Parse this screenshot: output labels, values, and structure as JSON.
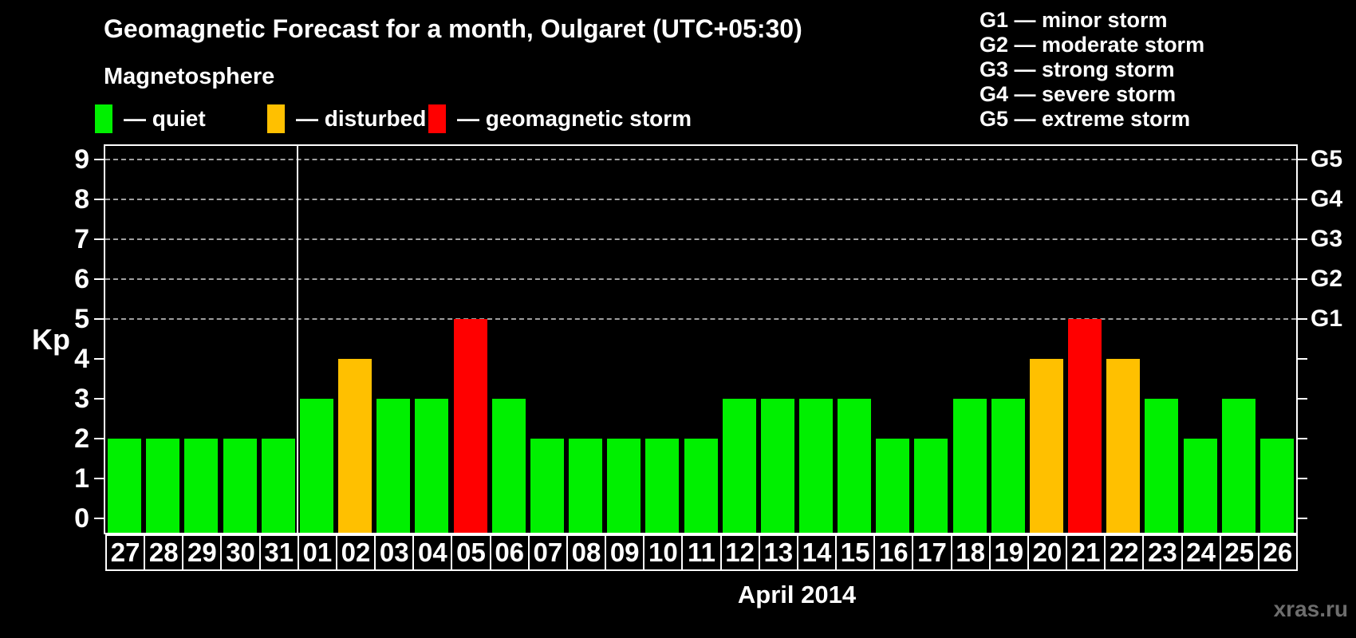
{
  "header": {
    "title": "Geomagnetic Forecast for a month, Oulgaret (UTC+05:30)",
    "subtitle": "Magnetosphere"
  },
  "status_legend": [
    {
      "status": "quiet",
      "label": "— quiet",
      "color": "#00f000"
    },
    {
      "status": "disturbed",
      "label": "— disturbed",
      "color": "#ffc000"
    },
    {
      "status": "storm",
      "label": "— geomagnetic storm",
      "color": "#ff0000"
    }
  ],
  "g_scale_legend": [
    "G1 — minor storm",
    "G2 — moderate storm",
    "G3 — strong storm",
    "G4 — severe storm",
    "G5 — extreme storm"
  ],
  "watermark": "xras.ru",
  "chart_data": {
    "type": "bar",
    "title": "Geomagnetic Forecast for a month, Oulgaret (UTC+05:30)",
    "xlabel": "April 2014",
    "ylabel": "Kp",
    "ylim": [
      0,
      9
    ],
    "y_ticks": [
      0,
      1,
      2,
      3,
      4,
      5,
      6,
      7,
      8,
      9
    ],
    "gridlines_at": [
      5,
      6,
      7,
      8,
      9
    ],
    "grid": "horizontal dashed lines at Kp 5–9 only",
    "right_axis_labels": [
      {
        "label": "G1",
        "kp": 5
      },
      {
        "label": "G2",
        "kp": 6
      },
      {
        "label": "G3",
        "kp": 7
      },
      {
        "label": "G4",
        "kp": 8
      },
      {
        "label": "G5",
        "kp": 9
      }
    ],
    "month_divider_after": "31",
    "categories": [
      "27",
      "28",
      "29",
      "30",
      "31",
      "01",
      "02",
      "03",
      "04",
      "05",
      "06",
      "07",
      "08",
      "09",
      "10",
      "11",
      "12",
      "13",
      "14",
      "15",
      "16",
      "17",
      "18",
      "19",
      "20",
      "21",
      "22",
      "23",
      "24",
      "25",
      "26"
    ],
    "values": [
      2,
      2,
      2,
      2,
      2,
      3,
      4,
      3,
      3,
      5,
      3,
      2,
      2,
      2,
      2,
      2,
      3,
      3,
      3,
      3,
      2,
      2,
      3,
      3,
      4,
      5,
      4,
      3,
      2,
      3,
      2
    ],
    "statuses": [
      "quiet",
      "quiet",
      "quiet",
      "quiet",
      "quiet",
      "quiet",
      "disturbed",
      "quiet",
      "quiet",
      "storm",
      "quiet",
      "quiet",
      "quiet",
      "quiet",
      "quiet",
      "quiet",
      "quiet",
      "quiet",
      "quiet",
      "quiet",
      "quiet",
      "quiet",
      "quiet",
      "quiet",
      "disturbed",
      "storm",
      "disturbed",
      "quiet",
      "quiet",
      "quiet",
      "quiet"
    ],
    "status_colors": {
      "quiet": "#00f000",
      "disturbed": "#ffc000",
      "storm": "#ff0000"
    }
  }
}
